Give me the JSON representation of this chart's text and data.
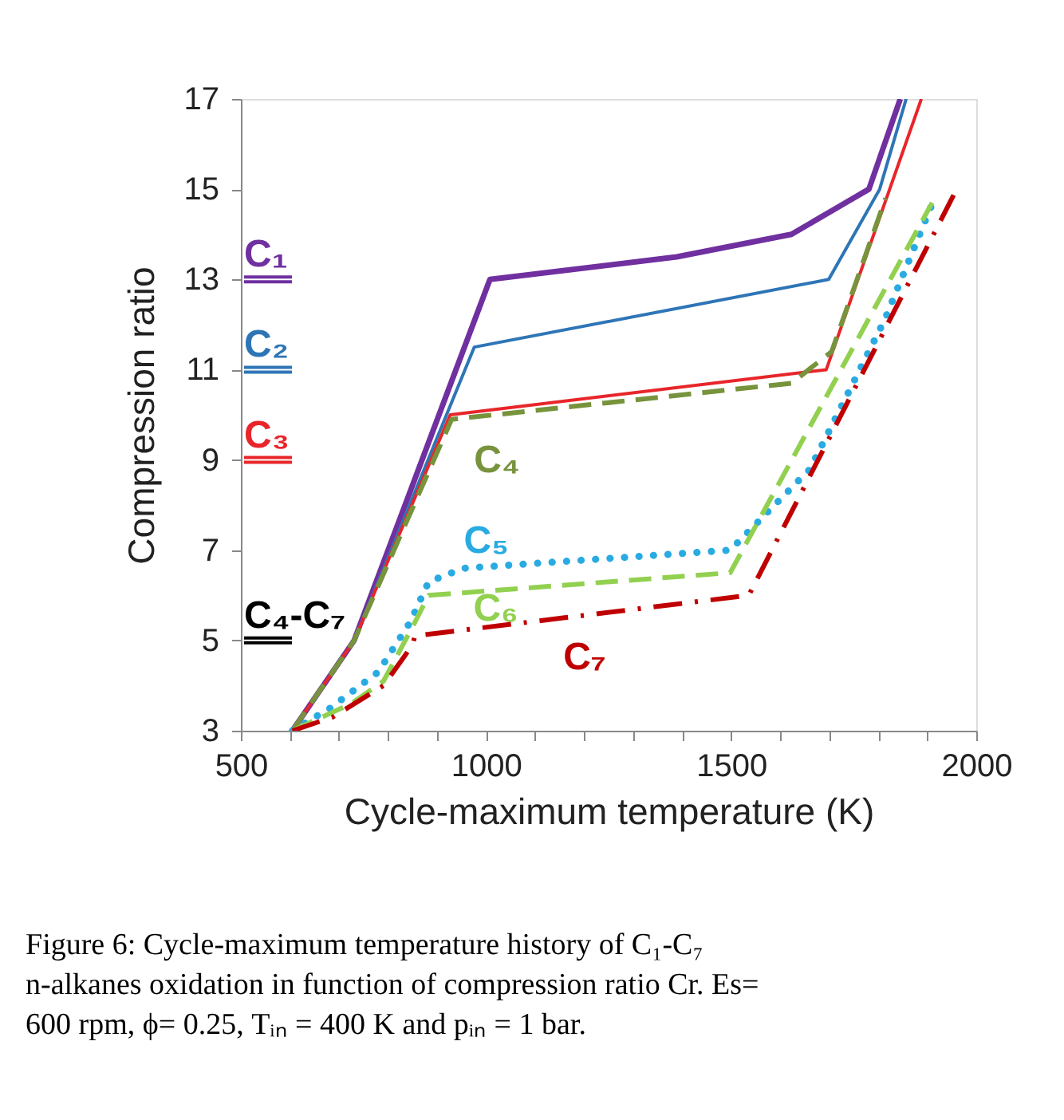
{
  "chart_data": {
    "type": "line",
    "xlabel": "Cycle-maximum temperature (K)",
    "ylabel": "Compression ratio",
    "xlim": [
      500,
      2000
    ],
    "ylim": [
      3,
      17
    ],
    "xticks": [
      500,
      {
        "value": 600,
        "label": null
      },
      {
        "value": 700,
        "label": null
      },
      {
        "value": 800,
        "label": null
      },
      {
        "value": 900,
        "label": null
      },
      1000,
      {
        "value": 1100,
        "label": null
      },
      {
        "value": 1200,
        "label": null
      },
      {
        "value": 1300,
        "label": null
      },
      {
        "value": 1400,
        "label": null
      },
      1500,
      {
        "value": 1600,
        "label": null
      },
      {
        "value": 1700,
        "label": null
      },
      {
        "value": 1800,
        "label": null
      },
      {
        "value": 1900,
        "label": null
      },
      2000
    ],
    "yticks": [
      3,
      5,
      7,
      9,
      11,
      13,
      15,
      17
    ],
    "grid": false,
    "series": [
      {
        "color": "#7030a0",
        "line_style": "solid",
        "x": [
          605,
          731,
          1008,
          1389,
          1623,
          1781,
          1845
        ],
        "values": [
          3,
          5.0,
          13.0,
          13.5,
          14.0,
          15.0,
          17
        ]
      },
      {
        "color": "#2e75b6",
        "line_style": "solid",
        "x": [
          605,
          731,
          976,
          1699,
          1803,
          1857
        ],
        "values": [
          3,
          5.0,
          11.5,
          13.0,
          15.0,
          17
        ]
      },
      {
        "color": "#e8262a",
        "line_style": "solid",
        "x": [
          605,
          731,
          927,
          1694,
          1888
        ],
        "values": [
          3,
          5.0,
          10.0,
          11.0,
          17
        ]
      },
      {
        "name": "C₄",
        "color": "#77933c",
        "line_style": "dashed",
        "x": [
          605,
          731,
          930,
          1623,
          1705,
          1815
        ],
        "values": [
          3,
          5.0,
          9.9,
          10.7,
          11.4,
          14.8
        ]
      },
      {
        "name": "C₅",
        "color": "#29abe2",
        "line_style": "dotted",
        "x": [
          605,
          682,
          780,
          845,
          883,
          954,
          1498,
          1661,
          1813,
          1911
        ],
        "values": [
          3,
          3.5,
          4.3,
          5.4,
          6.3,
          6.6,
          7.0,
          8.8,
          12.1,
          14.7
        ]
      },
      {
        "name": "C₆",
        "color": "#92d050",
        "line_style": "dashed",
        "x": [
          605,
          725,
          791,
          850,
          883,
          1498,
          1910
        ],
        "values": [
          3,
          3.6,
          4.1,
          5.3,
          6.0,
          6.5,
          14.7
        ]
      },
      {
        "name": "C₇",
        "color": "#c00000",
        "line_style": "dashdot",
        "x": [
          605,
          687,
          791,
          850,
          855,
          1536,
          1960
        ],
        "values": [
          3,
          3.3,
          4.0,
          4.9,
          5.1,
          6.0,
          15.0
        ]
      }
    ],
    "ref_lines": [
      {
        "axis": "y",
        "value": 13,
        "label": "C₁",
        "color": "#7030a0"
      },
      {
        "axis": "y",
        "value": 11,
        "label": "C₂",
        "color": "#2e75b6"
      },
      {
        "axis": "y",
        "value": 9,
        "label": "C₃",
        "color": "#e8262a"
      },
      {
        "axis": "y",
        "value": 5,
        "label": "C₄-C₇",
        "color": "#000000"
      }
    ],
    "annotations": [
      "Figure 6: Cycle-maximum temperature history of C₁-C₇ n-alkanes oxidation in function of compression ratio Cr. Es= 600 rpm, ϕ= 0.25, Tᵢₙ = 400 K and pᵢₙ = 1 bar."
    ]
  }
}
